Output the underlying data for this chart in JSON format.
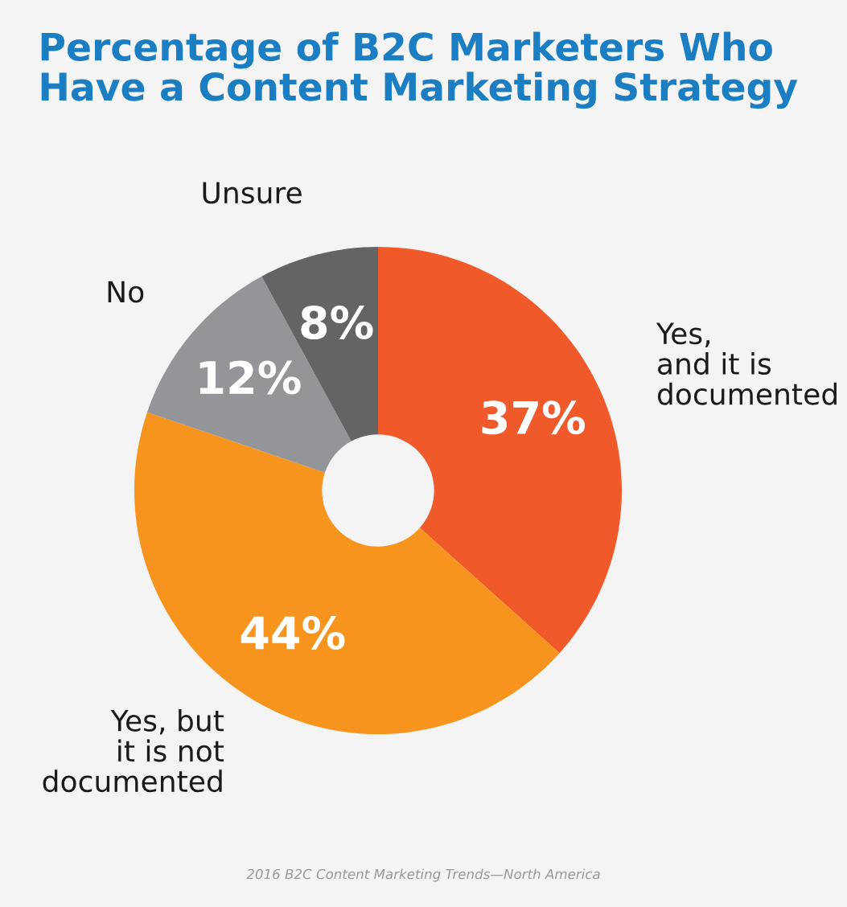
{
  "chart_data": {
    "type": "donut",
    "title": "Percentage of B2C Marketers Who\nHave a Content Marketing Strategy",
    "categories": [
      "Yes,\nand it is\ndocumented",
      "Yes, but\nit is not\ndocumented",
      "No",
      "Unsure"
    ],
    "values": [
      37,
      44,
      12,
      8
    ],
    "colors": [
      "#f05a2b",
      "#f7941e",
      "#939598",
      "#636466"
    ],
    "value_labels": [
      "37%",
      "44%",
      "12%",
      "8%"
    ],
    "annotations": [
      "2016 B2C Content Marketing Trends—North America"
    ]
  }
}
